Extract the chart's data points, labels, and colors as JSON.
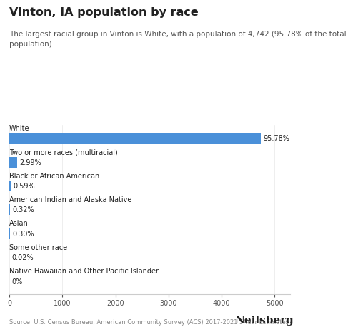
{
  "title": "Vinton, IA population by race",
  "subtitle": "The largest racial group in Vinton is White, with a population of 4,742 (95.78% of the total\npopulation)",
  "categories": [
    "White",
    "Two or more races (multiracial)",
    "Black or African American",
    "American Indian and Alaska Native",
    "Asian",
    "Some other race",
    "Native Hawaiian and Other Pacific Islander"
  ],
  "values": [
    4742,
    148,
    29,
    16,
    15,
    1,
    0
  ],
  "labels": [
    "95.78%",
    "2.99%",
    "0.59%",
    "0.32%",
    "0.30%",
    "0.02%",
    "0%"
  ],
  "bar_color": "#4a90d9",
  "bar_height": 0.45,
  "xlim": [
    0,
    5300
  ],
  "xticks": [
    0,
    1000,
    2000,
    3000,
    4000,
    5000
  ],
  "background_color": "#ffffff",
  "title_fontsize": 11.5,
  "subtitle_fontsize": 7.5,
  "label_fontsize": 7,
  "category_fontsize": 7,
  "tick_fontsize": 7,
  "source_text": "Source: U.S. Census Bureau, American Community Survey (ACS) 2017-2021 5-Year Estimates",
  "brand_text": "Neilsberg",
  "text_color": "#222222",
  "subtitle_color": "#555555",
  "axis_color": "#cccccc"
}
